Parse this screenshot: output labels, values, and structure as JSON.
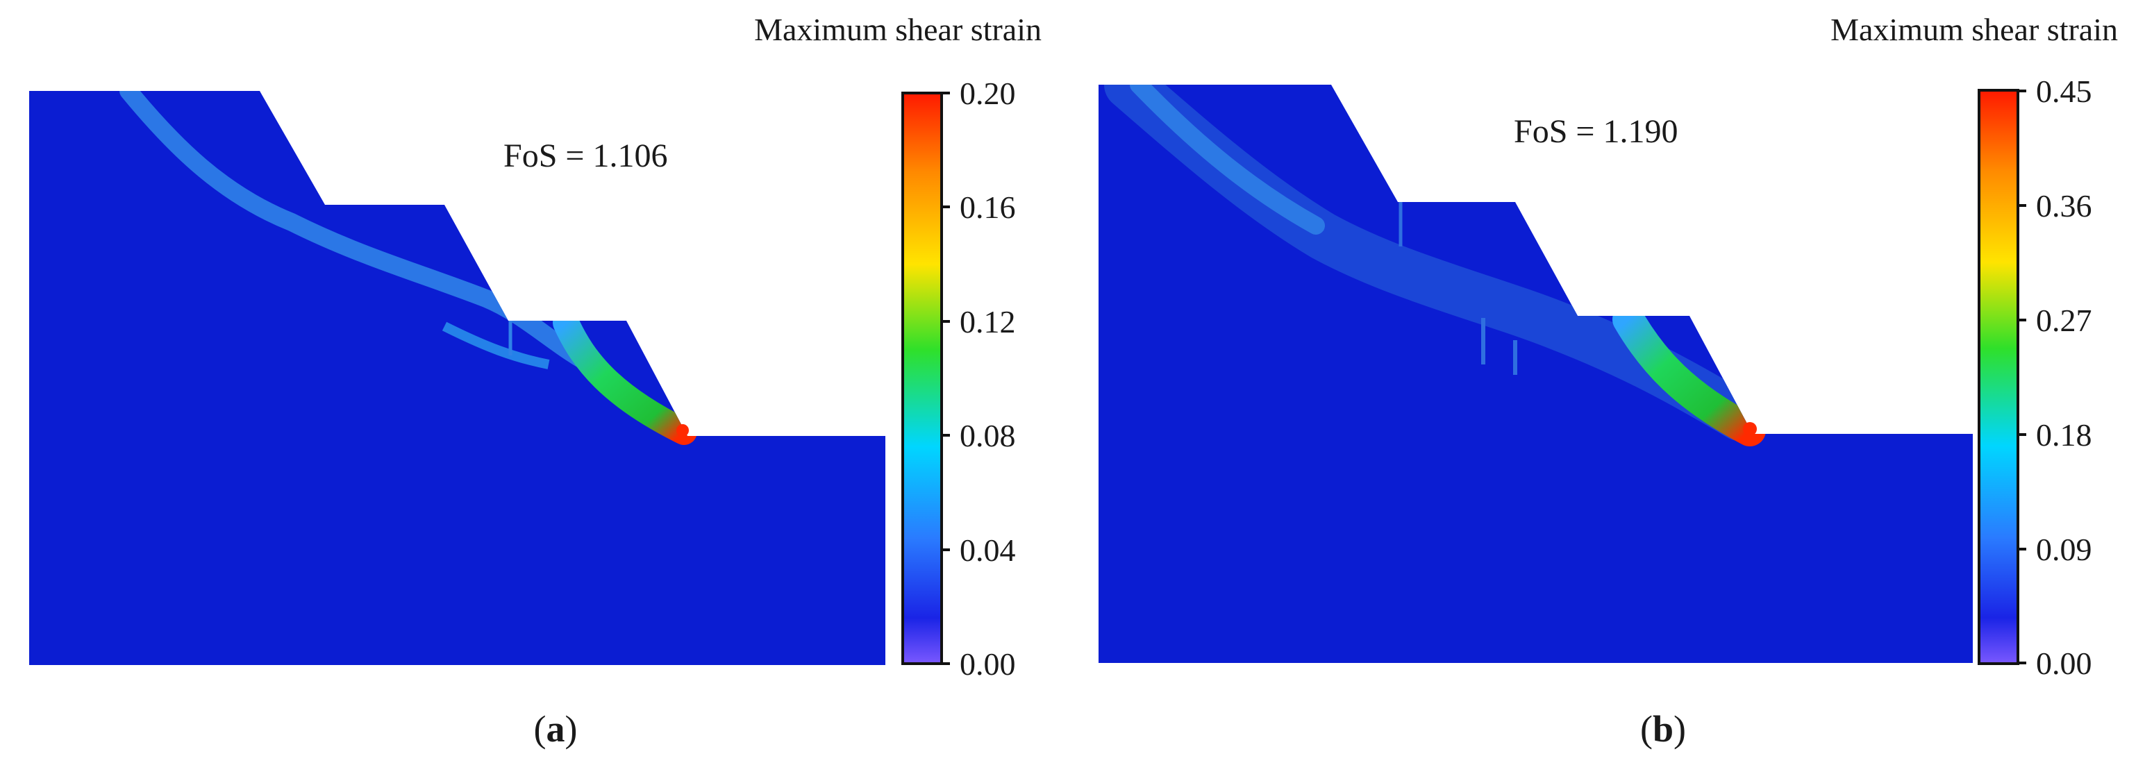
{
  "figure": {
    "panels": [
      {
        "id": "a",
        "title": "Maximum shear strain",
        "fos_text": "FoS = 1.106",
        "caption": {
          "open": "(",
          "letter": "a",
          "close": ")"
        },
        "colorbar": {
          "ticks": [
            "0.20",
            "0.16",
            "0.12",
            "0.08",
            "0.04",
            "0.00"
          ],
          "min": 0.0,
          "max": 0.2
        }
      },
      {
        "id": "b",
        "title": "Maximum shear strain",
        "fos_text": "FoS = 1.190",
        "caption": {
          "open": "(",
          "letter": "b",
          "close": ")"
        },
        "colorbar": {
          "ticks": [
            "0.45",
            "0.36",
            "0.27",
            "0.18",
            "0.09",
            "0.00"
          ],
          "min": 0.0,
          "max": 0.45
        }
      }
    ],
    "colors": {
      "slope_fill": "#0b1dd2",
      "shear_band": "#2f82e8",
      "colorbar_stops": [
        "#ff1a00",
        "#ff8a00",
        "#ffe400",
        "#2fe02a",
        "#00d6ff",
        "#2a7bff",
        "#1a24e6",
        "#7a58ff"
      ]
    }
  }
}
